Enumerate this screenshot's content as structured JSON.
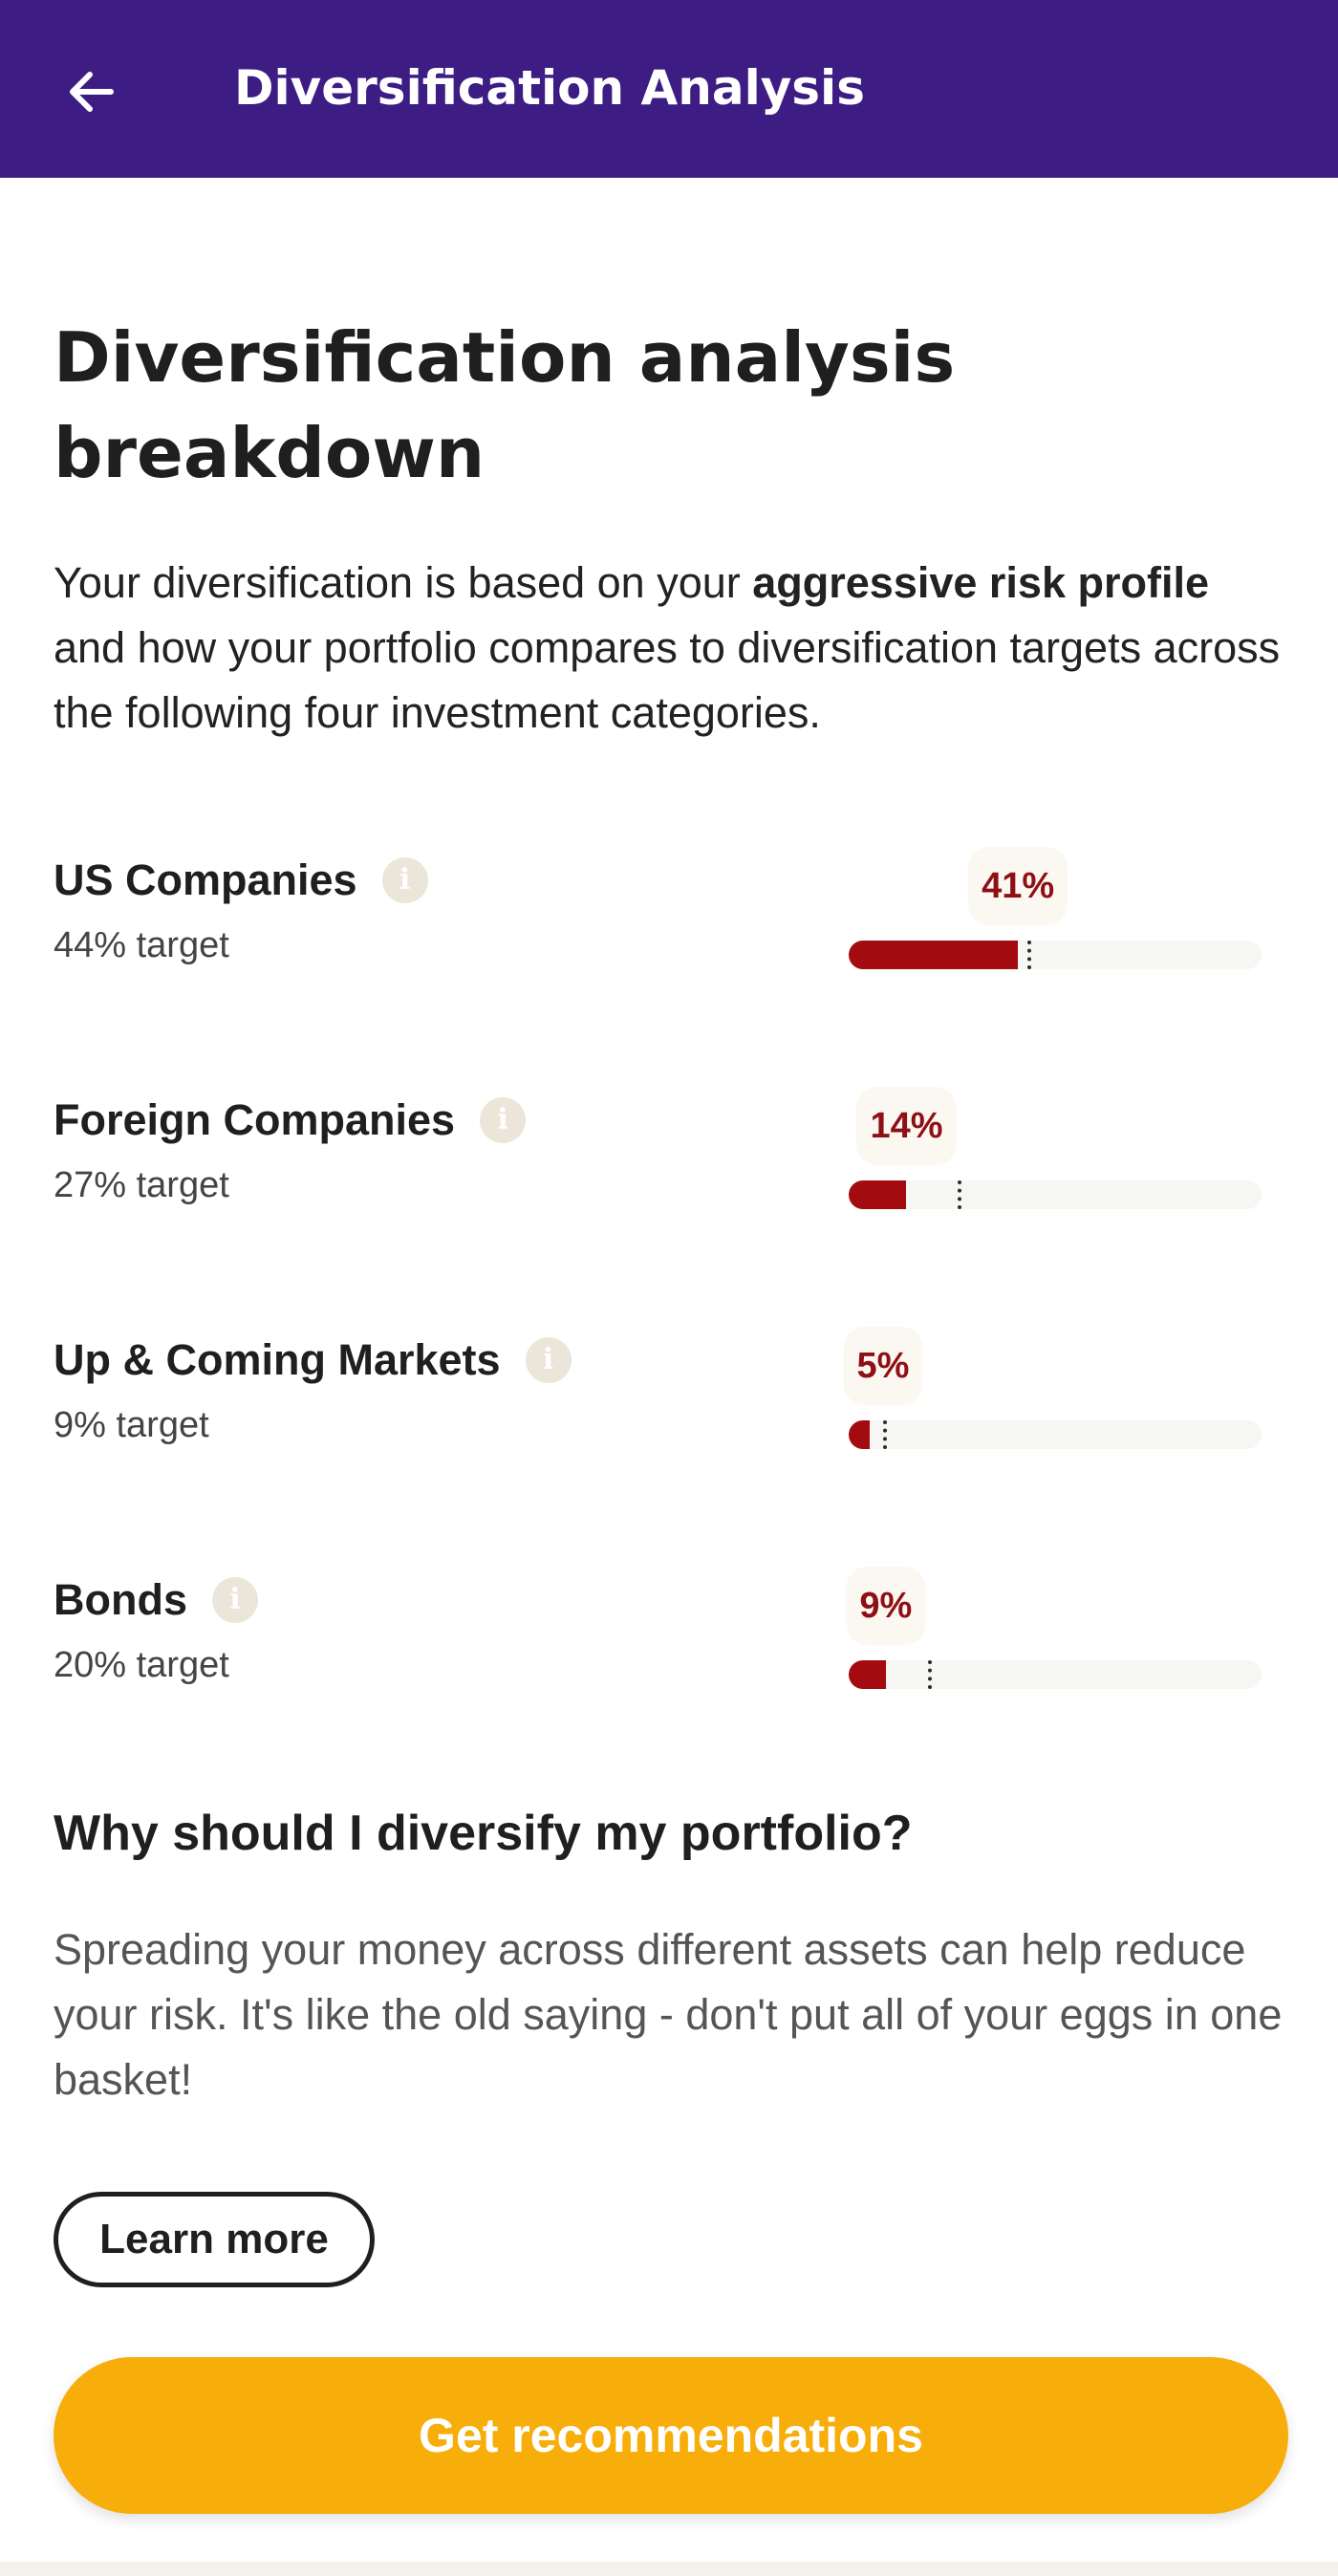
{
  "header": {
    "title": "Diversification Analysis",
    "back_icon": "arrow-left-icon"
  },
  "page": {
    "title": "Diversification analysis breakdown",
    "intro_prefix": "Your diversification is based on your ",
    "intro_bold": "aggressive risk profile",
    "intro_suffix": " and how your portfolio compares to diversification targets across the following four investment categories."
  },
  "categories": [
    {
      "label": "US Companies",
      "target_text": "44% target",
      "actual_text": "41%",
      "actual": 41,
      "target": 44
    },
    {
      "label": "Foreign Companies",
      "target_text": "27% target",
      "actual_text": "14%",
      "actual": 14,
      "target": 27
    },
    {
      "label": "Up & Coming Markets",
      "target_text": "9% target",
      "actual_text": "5%",
      "actual": 5,
      "target": 9
    },
    {
      "label": "Bonds",
      "target_text": "20% target",
      "actual_text": "9%",
      "actual": 9,
      "target": 20
    }
  ],
  "info_icon_glyph": "i",
  "why": {
    "title": "Why should I diversify my portfolio?",
    "text": "Spreading your money across different assets can help reduce your risk. It's like the old saying - don't put all of your eggs in one basket!"
  },
  "buttons": {
    "learn_more": "Learn more",
    "get_recommendations": "Get recommendations"
  },
  "colors": {
    "header_bg": "#3d1c83",
    "bar_fill": "#a30b10",
    "primary_button": "#f7ad0a"
  }
}
